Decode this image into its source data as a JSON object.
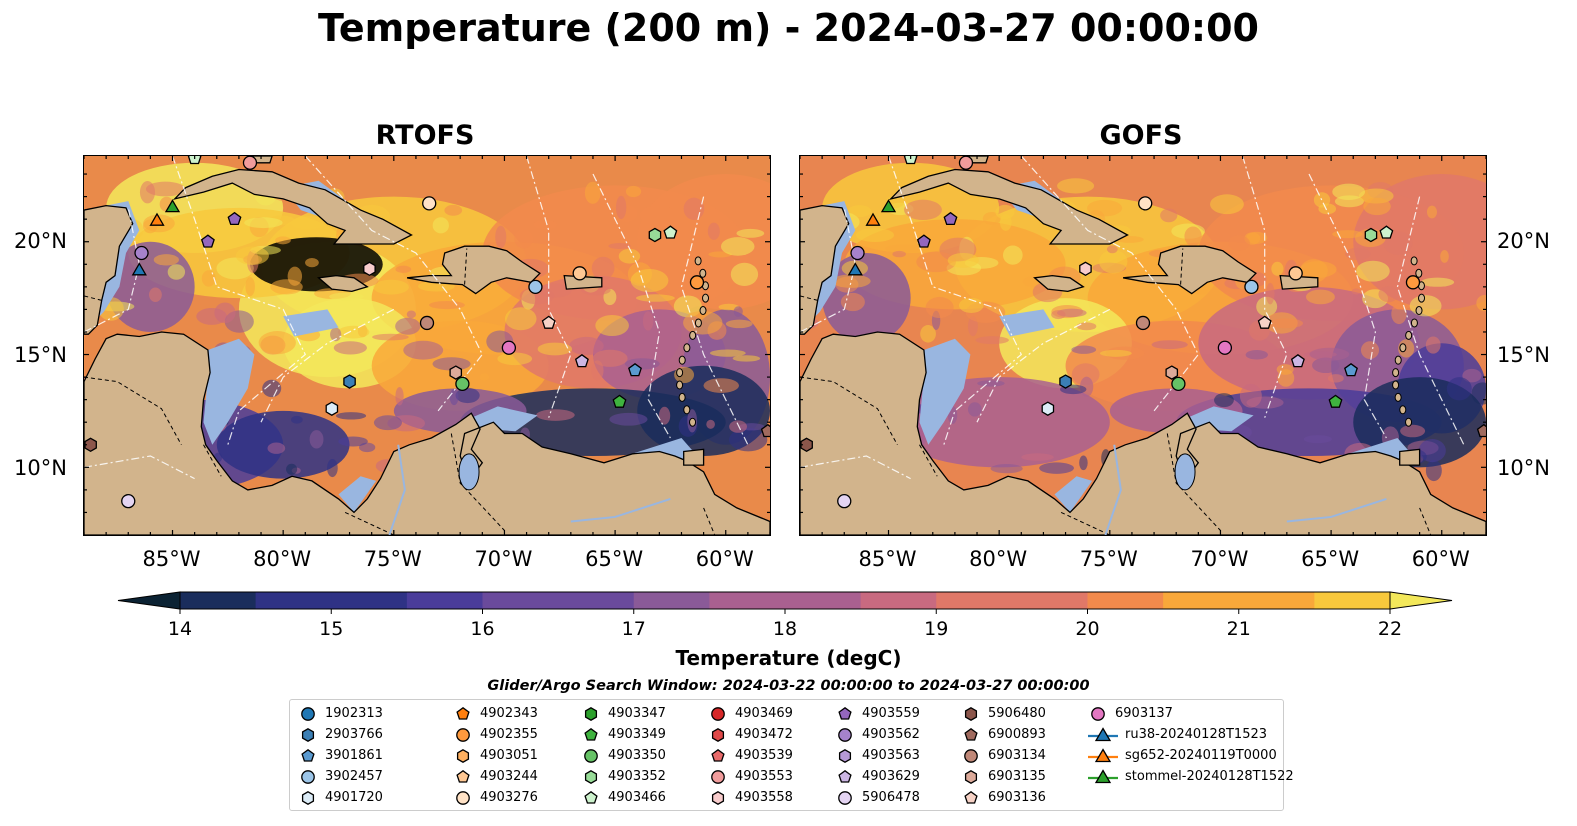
{
  "title": "Temperature (200 m) - 2024-03-27 00:00:00",
  "panels": [
    {
      "title": "RTOFS"
    },
    {
      "title": "GOFS"
    }
  ],
  "axes": {
    "lat_ticks": [
      "20°N",
      "15°N",
      "10°N"
    ],
    "lon_ticks": [
      "85°W",
      "80°W",
      "75°W",
      "70°W",
      "65°W",
      "60°W"
    ]
  },
  "colorbar": {
    "label": "Temperature (degC)",
    "ticks": [
      "14",
      "15",
      "16",
      "17",
      "18",
      "19",
      "20",
      "21",
      "22"
    ],
    "min": 14,
    "max": 22,
    "extend": "both",
    "colormap": [
      "#0b2233",
      "#1a2d5c",
      "#2f3285",
      "#4a3c9a",
      "#6a4a9c",
      "#8a5a98",
      "#a96090",
      "#c86a80",
      "#e07868",
      "#f28a4c",
      "#f9a83a",
      "#f8c83c",
      "#f3e85a"
    ]
  },
  "map_colors": {
    "land": "#d2b48c",
    "shelf_water": "#99b6e0",
    "deep_cold": "#0a2233",
    "borders": "#000000"
  },
  "legend": {
    "title": "Glider/Argo Search Window: 2024-03-22 00:00:00 to 2024-03-27 00:00:00",
    "columns": [
      [
        {
          "label": "1902313",
          "marker": "circle",
          "color": "#1f77b4"
        },
        {
          "label": "2903766",
          "marker": "hexagon",
          "color": "#3b7fb5"
        },
        {
          "label": "3901861",
          "marker": "pentagon",
          "color": "#5a9ad0"
        },
        {
          "label": "3902457",
          "marker": "circle",
          "color": "#9cc5e8"
        },
        {
          "label": "4901720",
          "marker": "hexagon",
          "color": "#dcecf7"
        }
      ],
      [
        {
          "label": "4902343",
          "marker": "pentagon",
          "color": "#ff7f0e"
        },
        {
          "label": "4902355",
          "marker": "circle",
          "color": "#ff9a3e"
        },
        {
          "label": "4903051",
          "marker": "hexagon",
          "color": "#ffb060"
        },
        {
          "label": "4903244",
          "marker": "pentagon",
          "color": "#ffc894"
        },
        {
          "label": "4903276",
          "marker": "circle",
          "color": "#ffe2c6"
        }
      ],
      [
        {
          "label": "4903347",
          "marker": "hexagon",
          "color": "#2ca02c"
        },
        {
          "label": "4903349",
          "marker": "pentagon",
          "color": "#3fb33f"
        },
        {
          "label": "4903350",
          "marker": "circle",
          "color": "#66c266"
        },
        {
          "label": "4903352",
          "marker": "hexagon",
          "color": "#98dc98"
        },
        {
          "label": "4903466",
          "marker": "pentagon",
          "color": "#cdf2cd"
        }
      ],
      [
        {
          "label": "4903469",
          "marker": "circle",
          "color": "#d62728"
        },
        {
          "label": "4903472",
          "marker": "hexagon",
          "color": "#e04848"
        },
        {
          "label": "4903539",
          "marker": "pentagon",
          "color": "#e86a6a"
        },
        {
          "label": "4903553",
          "marker": "circle",
          "color": "#f19c9c"
        },
        {
          "label": "4903558",
          "marker": "hexagon",
          "color": "#f8cccc"
        }
      ],
      [
        {
          "label": "4903559",
          "marker": "pentagon",
          "color": "#9467bd"
        },
        {
          "label": "4903562",
          "marker": "circle",
          "color": "#a682cb"
        },
        {
          "label": "4903563",
          "marker": "hexagon",
          "color": "#b79ad6"
        },
        {
          "label": "4903629",
          "marker": "pentagon",
          "color": "#ccb6e3"
        },
        {
          "label": "5906478",
          "marker": "circle",
          "color": "#e4d4f2"
        }
      ],
      [
        {
          "label": "5906480",
          "marker": "hexagon",
          "color": "#8c564b"
        },
        {
          "label": "6900893",
          "marker": "pentagon",
          "color": "#a06a5e"
        },
        {
          "label": "6903134",
          "marker": "circle",
          "color": "#c08878"
        },
        {
          "label": "6903135",
          "marker": "hexagon",
          "color": "#dcaa9a"
        },
        {
          "label": "6903136",
          "marker": "pentagon",
          "color": "#f6d2c6"
        }
      ],
      [
        {
          "label": "6903137",
          "marker": "circle",
          "color": "#e377c2"
        },
        {
          "label": "ru38-20240128T1523",
          "marker": "triangle-line",
          "color": "#1f77b4"
        },
        {
          "label": "sg652-20240119T0000",
          "marker": "triangle-line",
          "color": "#ff7f0e"
        },
        {
          "label": "stommel-20240128T1522",
          "marker": "triangle-line",
          "color": "#2ca02c"
        }
      ]
    ]
  },
  "map_markers": [
    {
      "lon": -84.0,
      "lat": 23.7,
      "marker": "pentagon",
      "color": "#cdf2cd"
    },
    {
      "lon": -81.5,
      "lat": 23.5,
      "marker": "circle",
      "color": "#f19c9c"
    },
    {
      "lon": -85.0,
      "lat": 21.5,
      "marker": "triangle",
      "color": "#2ca02c"
    },
    {
      "lon": -85.7,
      "lat": 20.9,
      "marker": "triangle",
      "color": "#ff7f0e"
    },
    {
      "lon": -82.2,
      "lat": 21.0,
      "marker": "pentagon",
      "color": "#9467bd"
    },
    {
      "lon": -83.4,
      "lat": 20.0,
      "marker": "pentagon",
      "color": "#9467bd"
    },
    {
      "lon": -86.4,
      "lat": 19.5,
      "marker": "circle",
      "color": "#a682cb"
    },
    {
      "lon": -86.5,
      "lat": 18.7,
      "marker": "triangle",
      "color": "#1f77b4"
    },
    {
      "lon": -73.4,
      "lat": 21.7,
      "marker": "circle",
      "color": "#ffe2c6"
    },
    {
      "lon": -76.1,
      "lat": 18.8,
      "marker": "hexagon",
      "color": "#f8cccc"
    },
    {
      "lon": -63.2,
      "lat": 20.3,
      "marker": "hexagon",
      "color": "#98dc98"
    },
    {
      "lon": -62.5,
      "lat": 20.4,
      "marker": "pentagon",
      "color": "#cdf2cd"
    },
    {
      "lon": -66.6,
      "lat": 18.6,
      "marker": "circle",
      "color": "#ffc894"
    },
    {
      "lon": -61.3,
      "lat": 18.2,
      "marker": "circle",
      "color": "#ff9a3e"
    },
    {
      "lon": -68.6,
      "lat": 18.0,
      "marker": "circle",
      "color": "#9cc5e8"
    },
    {
      "lon": -73.5,
      "lat": 16.4,
      "marker": "circle",
      "color": "#c08878"
    },
    {
      "lon": -68.0,
      "lat": 16.4,
      "marker": "pentagon",
      "color": "#f6d2c6"
    },
    {
      "lon": -69.8,
      "lat": 15.3,
      "marker": "circle",
      "color": "#e377c2"
    },
    {
      "lon": -66.5,
      "lat": 14.7,
      "marker": "pentagon",
      "color": "#ccb6e3"
    },
    {
      "lon": -64.1,
      "lat": 14.3,
      "marker": "pentagon",
      "color": "#5a9ad0"
    },
    {
      "lon": -72.2,
      "lat": 14.2,
      "marker": "hexagon",
      "color": "#dcaa9a"
    },
    {
      "lon": -71.9,
      "lat": 13.7,
      "marker": "circle",
      "color": "#66c266"
    },
    {
      "lon": -77.0,
      "lat": 13.8,
      "marker": "hexagon",
      "color": "#3b7fb5"
    },
    {
      "lon": -77.8,
      "lat": 12.6,
      "marker": "hexagon",
      "color": "#dcecf7"
    },
    {
      "lon": -64.8,
      "lat": 12.9,
      "marker": "pentagon",
      "color": "#3fb33f"
    },
    {
      "lon": -88.7,
      "lat": 11.0,
      "marker": "hexagon",
      "color": "#8c564b"
    },
    {
      "lon": -58.1,
      "lat": 11.6,
      "marker": "pentagon",
      "color": "#a06a5e"
    },
    {
      "lon": -87.0,
      "lat": 8.5,
      "marker": "circle",
      "color": "#e4d4f2"
    }
  ]
}
